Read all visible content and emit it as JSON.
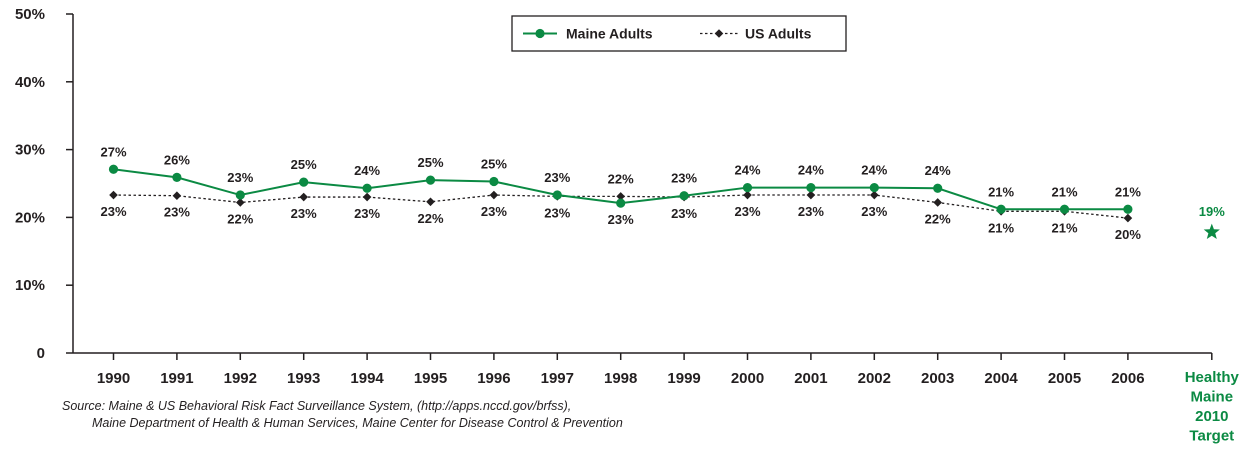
{
  "chart_data": {
    "type": "line",
    "x": [
      "1990",
      "1991",
      "1992",
      "1993",
      "1994",
      "1995",
      "1996",
      "1997",
      "1998",
      "1999",
      "2000",
      "2001",
      "2002",
      "2003",
      "2004",
      "2005",
      "2006"
    ],
    "ylim": [
      0,
      50
    ],
    "yticks": [
      0,
      10,
      20,
      30,
      40,
      50
    ],
    "ytick_labels": [
      "0",
      "10%",
      "20%",
      "30%",
      "40%",
      "50%"
    ],
    "grid": false,
    "legend_position": "top-center",
    "series": [
      {
        "name": "Maine Adults",
        "color": "#0b8a43",
        "style": "solid",
        "marker": "circle",
        "values": [
          27.1,
          25.9,
          23.3,
          25.2,
          24.3,
          25.5,
          25.3,
          23.3,
          22.1,
          23.2,
          24.4,
          24.4,
          24.4,
          24.3,
          21.2,
          21.2,
          21.2
        ],
        "labels": [
          "27%",
          "26%",
          "23%",
          "25%",
          "24%",
          "25%",
          "25%",
          "23%",
          "22%",
          "23%",
          "24%",
          "24%",
          "24%",
          "24%",
          "21%",
          "21%",
          "21%"
        ]
      },
      {
        "name": "US Adults",
        "color": "#231f20",
        "style": "dotted",
        "marker": "diamond",
        "values": [
          23.3,
          23.2,
          22.2,
          23.0,
          23.0,
          22.3,
          23.3,
          23.1,
          23.1,
          23.0,
          23.3,
          23.3,
          23.3,
          22.2,
          20.9,
          20.9,
          19.9
        ],
        "labels": [
          "23%",
          "23%",
          "22%",
          "23%",
          "23%",
          "22%",
          "23%",
          "23%",
          "23%",
          "23%",
          "23%",
          "23%",
          "23%",
          "22%",
          "21%",
          "21%",
          "20%"
        ]
      }
    ],
    "target": {
      "label_lines": [
        "Healthy",
        "Maine",
        "2010",
        "Target"
      ],
      "value": 19,
      "value_label": "19%",
      "color": "#0b8a43",
      "marker": "star"
    },
    "source_lines": [
      "Source: Maine & US Behavioral Risk Fact Surveillance System, (http://apps.nccd.gov/brfss),",
      "Maine Department of Health & Human Services, Maine Center for Disease Control & Prevention"
    ]
  }
}
